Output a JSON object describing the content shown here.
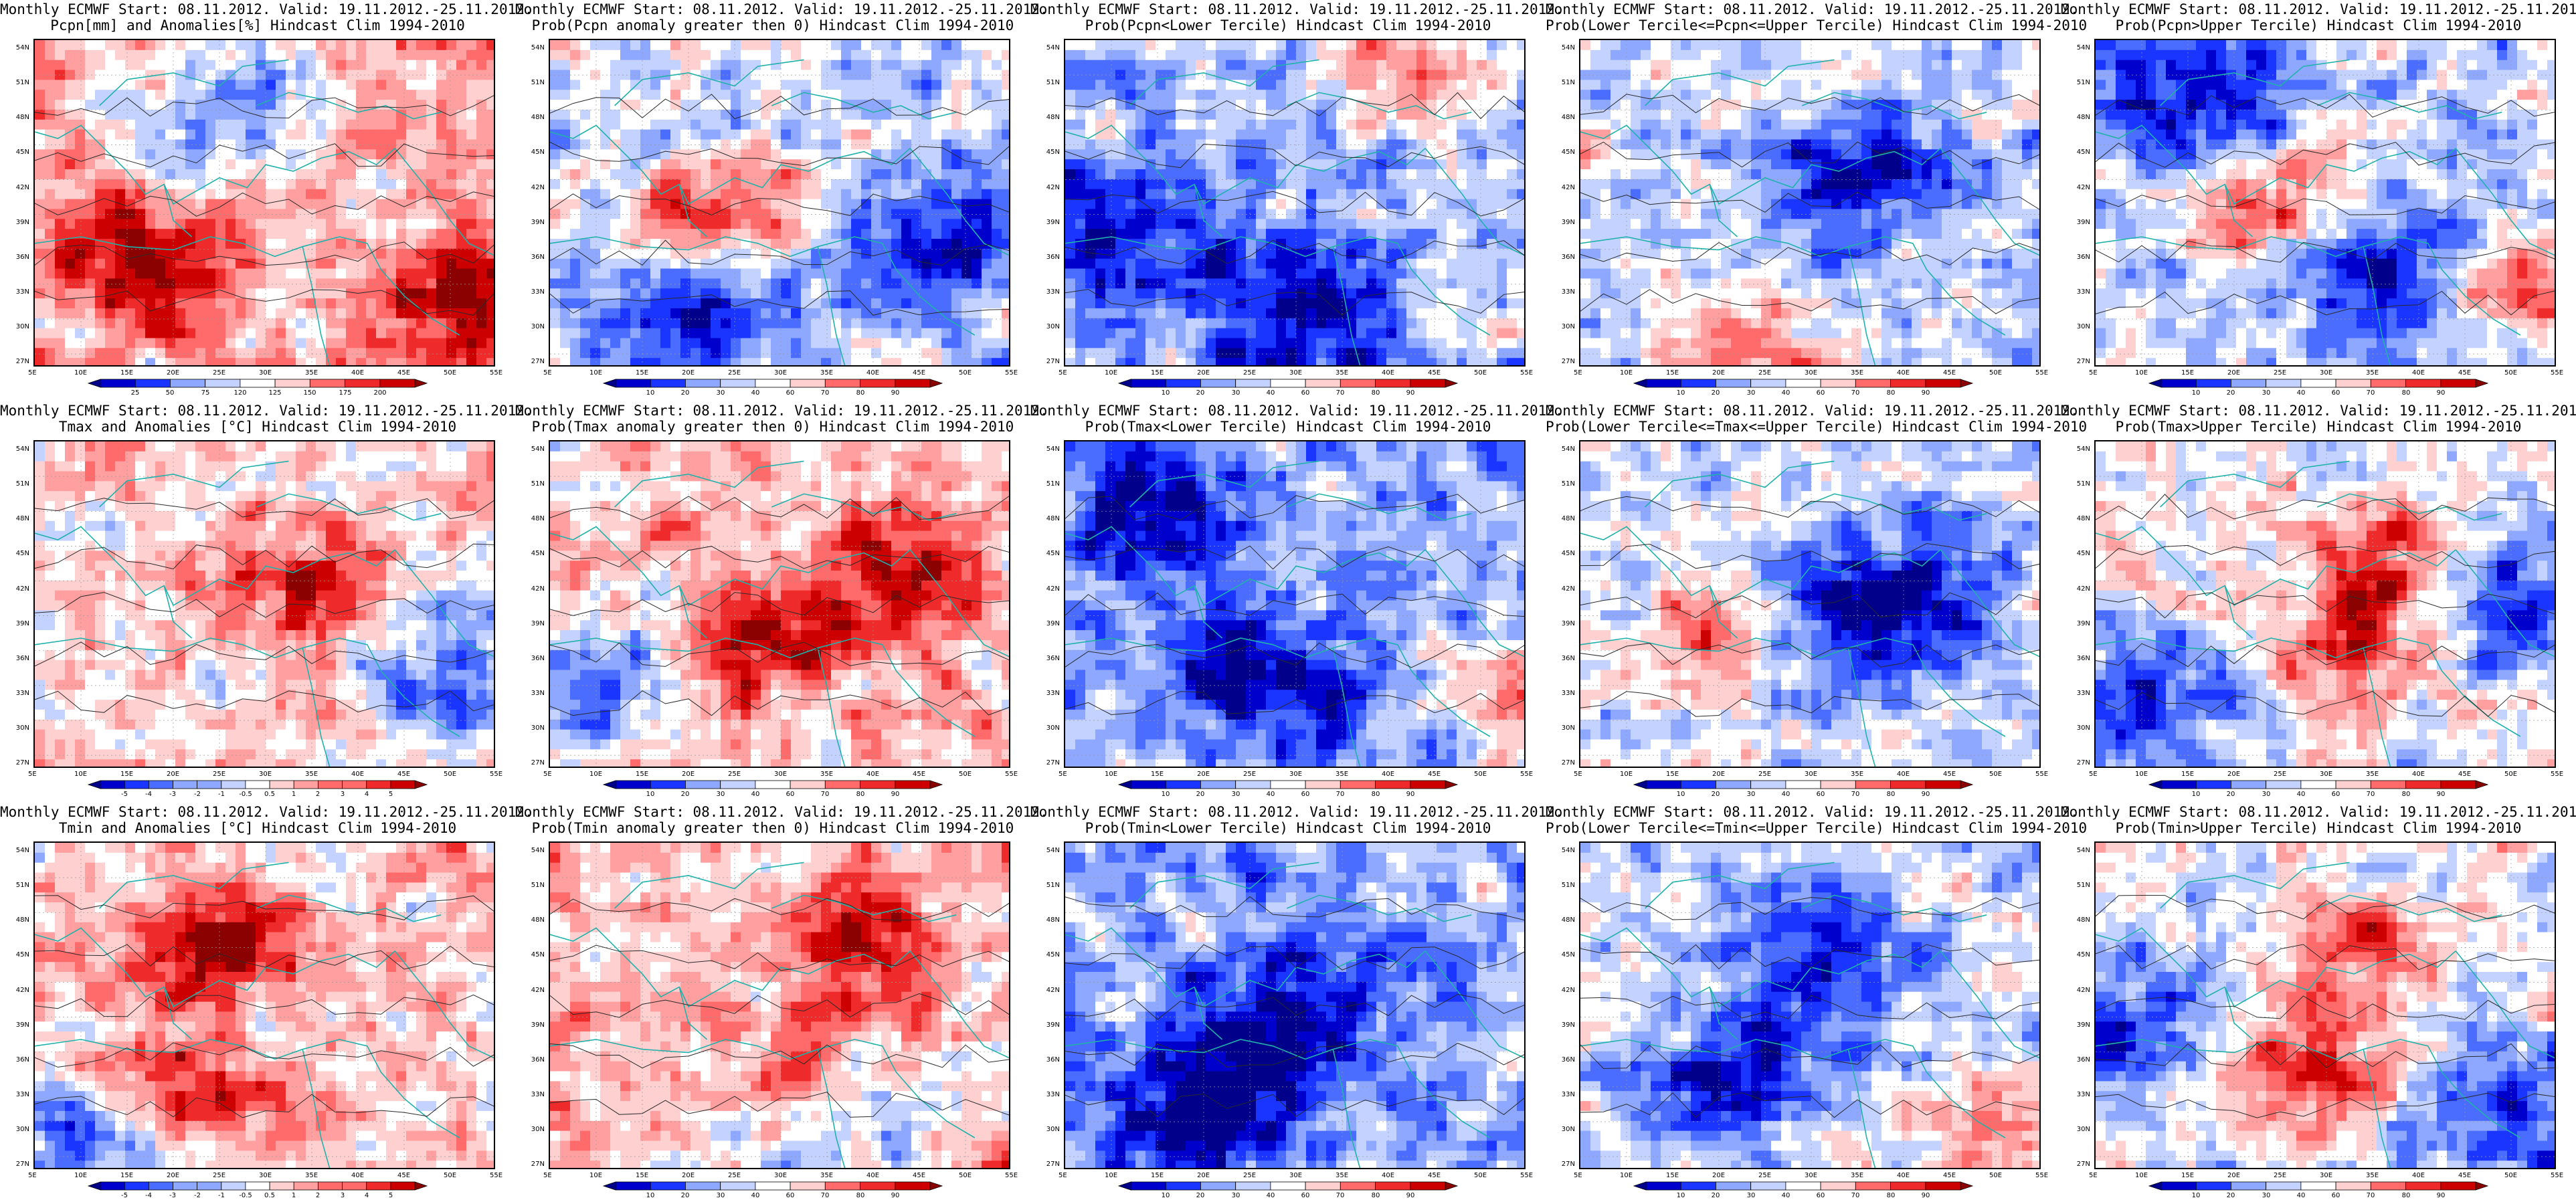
{
  "colors": {
    "scale": [
      "#00008b",
      "#0000cd",
      "#1a35ff",
      "#4a6cff",
      "#8ea8ff",
      "#c4d2ff",
      "#ffffff",
      "#ffd0d0",
      "#ff9f9f",
      "#ff6a6a",
      "#ee2a2a",
      "#cc0000",
      "#8b0000"
    ],
    "contour": "#2a2a2a",
    "coast": "#20b2aa",
    "border": "#000000"
  },
  "common": {
    "title_line1": "Monthly ECMWF Start: 08.11.2012. Valid: 19.11.2012.-25.11.2012.",
    "lat_ticks": [
      "54N",
      "51N",
      "48N",
      "45N",
      "42N",
      "39N",
      "36N",
      "33N",
      "30N",
      "27N"
    ],
    "lon_ticks": [
      "5E",
      "10E",
      "15E",
      "20E",
      "25E",
      "30E",
      "35E",
      "40E",
      "45E",
      "50E",
      "55E"
    ]
  },
  "colorbars": {
    "pcpn_anomaly": [
      "25",
      "50",
      "75",
      "120",
      "125",
      "150",
      "175",
      "200"
    ],
    "probability": [
      "10",
      "20",
      "30",
      "40",
      "60",
      "70",
      "80",
      "90"
    ],
    "temp_anomaly": [
      "-5",
      "-4",
      "-3",
      "-2",
      "-1",
      "-0.5",
      "0.5",
      "1",
      "2",
      "3",
      "4",
      "5"
    ]
  },
  "panels": [
    {
      "id": "p1",
      "title": "Pcpn[mm] and Anomalies[%] Hindcast Clim 1994-2010",
      "colorbar": "pcpn_anomaly",
      "seed": 11,
      "bias": 0.55,
      "hot": [
        [
          0.22,
          0.65
        ],
        [
          0.9,
          0.78
        ]
      ],
      "cold": [
        [
          0.4,
          0.2
        ]
      ]
    },
    {
      "id": "p2",
      "title": "Prob(Pcpn anomaly greater then 0) Hindcast Clim 1994-2010",
      "colorbar": "probability",
      "seed": 23,
      "bias": -0.2,
      "hot": [
        [
          0.35,
          0.5
        ]
      ],
      "cold": [
        [
          0.3,
          0.85
        ],
        [
          0.85,
          0.6
        ]
      ]
    },
    {
      "id": "p3",
      "title": "Prob(Pcpn<Lower Tercile) Hindcast Clim 1994-2010",
      "colorbar": "probability",
      "seed": 37,
      "bias": -0.5,
      "hot": [
        [
          0.75,
          0.1
        ]
      ],
      "cold": [
        [
          0.5,
          0.8
        ],
        [
          0.1,
          0.6
        ]
      ]
    },
    {
      "id": "p4",
      "title": "Prob(Lower Tercile<=Pcpn<=Upper Tercile) Hindcast Clim 1994-2010",
      "colorbar": "probability",
      "seed": 41,
      "bias": -0.3,
      "hot": [
        [
          0.35,
          0.95
        ]
      ],
      "cold": [
        [
          0.6,
          0.4
        ]
      ]
    },
    {
      "id": "p5",
      "title": "Prob(Pcpn>Upper Tercile) Hindcast Clim 1994-2010",
      "colorbar": "probability",
      "seed": 53,
      "bias": -0.3,
      "hot": [
        [
          0.35,
          0.5
        ],
        [
          0.92,
          0.75
        ]
      ],
      "cold": [
        [
          0.2,
          0.15
        ],
        [
          0.6,
          0.7
        ]
      ]
    },
    {
      "id": "p6",
      "title": "Tmax and Anomalies [°C] Hindcast Clim 1994-2010",
      "colorbar": "temp_anomaly",
      "seed": 61,
      "bias": 0.25,
      "hot": [
        [
          0.55,
          0.4
        ]
      ],
      "cold": [
        [
          0.95,
          0.7
        ]
      ]
    },
    {
      "id": "p7",
      "title": "Prob(Tmax anomaly greater then 0) Hindcast Clim 1994-2010",
      "colorbar": "probability",
      "seed": 71,
      "bias": 0.45,
      "hot": [
        [
          0.45,
          0.6
        ],
        [
          0.75,
          0.4
        ]
      ],
      "cold": [
        [
          0.1,
          0.7
        ]
      ]
    },
    {
      "id": "p8",
      "title": "Prob(Tmax<Lower Tercile) Hindcast Clim 1994-2010",
      "colorbar": "probability",
      "seed": 83,
      "bias": -0.55,
      "hot": [
        [
          0.97,
          0.75
        ]
      ],
      "cold": [
        [
          0.4,
          0.7
        ],
        [
          0.2,
          0.2
        ]
      ]
    },
    {
      "id": "p9",
      "title": "Prob(Lower Tercile<=Tmax<=Upper Tercile) Hindcast Clim 1994-2010",
      "colorbar": "probability",
      "seed": 97,
      "bias": -0.2,
      "hot": [
        [
          0.3,
          0.6
        ]
      ],
      "cold": [
        [
          0.55,
          0.6
        ],
        [
          0.7,
          0.4
        ]
      ]
    },
    {
      "id": "p10",
      "title": "Prob(Tmax>Upper Tercile) Hindcast Clim 1994-2010",
      "colorbar": "probability",
      "seed": 101,
      "bias": 0.0,
      "hot": [
        [
          0.55,
          0.6
        ],
        [
          0.6,
          0.35
        ]
      ],
      "cold": [
        [
          0.1,
          0.75
        ],
        [
          0.92,
          0.5
        ]
      ]
    },
    {
      "id": "p11",
      "title": "Tmin and Anomalies [°C] Hindcast Clim 1994-2010",
      "colorbar": "temp_anomaly",
      "seed": 113,
      "bias": 0.3,
      "hot": [
        [
          0.4,
          0.3
        ],
        [
          0.3,
          0.75
        ]
      ],
      "cold": [
        [
          0.1,
          0.9
        ]
      ]
    },
    {
      "id": "p12",
      "title": "Prob(Tmin anomaly greater then 0) Hindcast Clim 1994-2010",
      "colorbar": "probability",
      "seed": 127,
      "bias": 0.4,
      "hot": [
        [
          0.55,
          0.7
        ],
        [
          0.65,
          0.3
        ]
      ],
      "cold": [
        [
          0.6,
          0.8
        ]
      ]
    },
    {
      "id": "p13",
      "title": "Prob(Tmin<Lower Tercile) Hindcast Clim 1994-2010",
      "colorbar": "probability",
      "seed": 131,
      "bias": -0.65,
      "hot": [],
      "cold": [
        [
          0.5,
          0.5
        ],
        [
          0.3,
          0.8
        ]
      ]
    },
    {
      "id": "p14",
      "title": "Prob(Lower Tercile<=Tmin<=Upper Tercile) Hindcast Clim 1994-2010",
      "colorbar": "probability",
      "seed": 149,
      "bias": -0.3,
      "hot": [
        [
          0.9,
          0.85
        ]
      ],
      "cold": [
        [
          0.5,
          0.35
        ],
        [
          0.3,
          0.7
        ]
      ]
    },
    {
      "id": "p15",
      "title": "Prob(Tmin>Upper Tercile) Hindcast Clim 1994-2010",
      "colorbar": "probability",
      "seed": 157,
      "bias": -0.1,
      "hot": [
        [
          0.55,
          0.3
        ],
        [
          0.45,
          0.65
        ]
      ],
      "cold": [
        [
          0.05,
          0.55
        ],
        [
          0.9,
          0.8
        ]
      ]
    }
  ]
}
